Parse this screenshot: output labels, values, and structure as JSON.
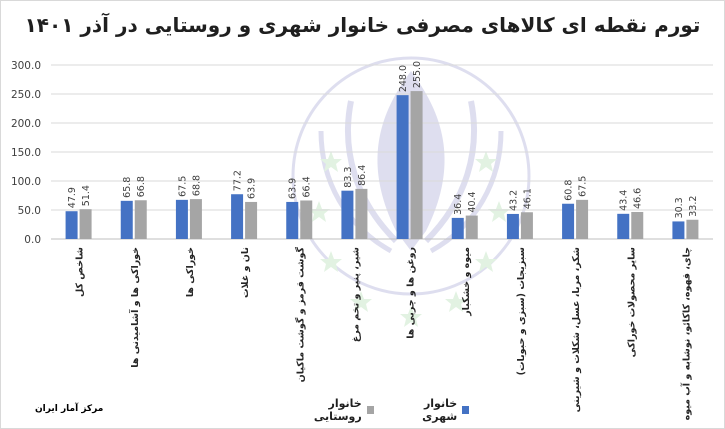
{
  "chart_data": {
    "type": "bar",
    "title": "تورم نقطه ای کالاهای مصرفی خانوار شهری و روستایی در آذر ۱۴۰۱",
    "source": "مرکز آمار ایران",
    "ylim": [
      0,
      300
    ],
    "yticks": [
      "300.0",
      "250.0",
      "200.0",
      "150.0",
      "100.0",
      "50.0",
      "0.0"
    ],
    "ytick_values": [
      300,
      250,
      200,
      150,
      100,
      50,
      0
    ],
    "grid": true,
    "legend_position": "bottom",
    "categories": [
      "شاخص کل",
      "خوراکی ها و آشامیدنی ها",
      "خوراکی ها",
      "نان و غلات",
      "گوشت قرمز و گوشت ماکیان",
      "شیر، پنیر و تخم مرغ",
      "روغن ها و چربی ها",
      "میوه و خشکبار",
      "سبزیجات (سبزی و حبوبات)",
      "شکر، مربا، عسل، شکلات و شیرینی",
      "سایر محصولات خوراکی",
      "چای، قهوه، کاکائو، نوشابه و آب میوه"
    ],
    "series": [
      {
        "name": "خانوار شهری",
        "color": "#4472c4",
        "values": [
          47.9,
          65.8,
          67.5,
          77.2,
          63.9,
          83.3,
          248.0,
          36.4,
          43.2,
          60.8,
          43.4,
          30.3
        ],
        "labels": [
          "47.9",
          "65.8",
          "67.5",
          "77.2",
          "63.9",
          "83.3",
          "248.0",
          "36.4",
          "43.2",
          "60.8",
          "43.4",
          "30.3"
        ]
      },
      {
        "name": "خانوار روستایی",
        "color": "#a5a5a5",
        "values": [
          51.4,
          66.8,
          68.8,
          63.9,
          66.4,
          86.4,
          255.0,
          40.4,
          46.1,
          67.5,
          46.6,
          33.2
        ],
        "labels": [
          "51.4",
          "66.8",
          "68.8",
          "63.9",
          "66.4",
          "86.4",
          "255.0",
          "40.4",
          "46.1",
          "67.5",
          "46.6",
          "33.2"
        ]
      }
    ]
  }
}
